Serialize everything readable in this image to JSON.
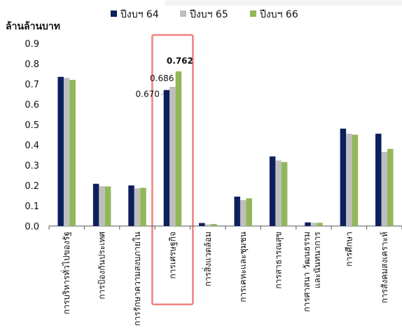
{
  "chart_data": {
    "type": "bar",
    "unit_label": "ล้านล้านบาท",
    "yticks": [
      "0.0",
      "0.1",
      "0.2",
      "0.3",
      "0.4",
      "0.5",
      "0.6",
      "0.7",
      "0.8",
      "0.9"
    ],
    "ylim": [
      0,
      0.9
    ],
    "grid": false,
    "legend_position": "top",
    "categories": [
      [
        "การบริหารทั่วไปของรัฐ"
      ],
      [
        "การป้องกันประเทศ"
      ],
      [
        "การรักษาความสงบภายใน"
      ],
      [
        "การเศรษฐกิจ"
      ],
      [
        "การสิ่งแวดล้อม"
      ],
      [
        "การเคหะและชุมชน"
      ],
      [
        "การสาธารณสุข"
      ],
      [
        "การศาสนา วัฒนธรรม",
        "และนันทนาการ"
      ],
      [
        "การศึกษา"
      ],
      [
        "การสังคมสงเคราะห์"
      ]
    ],
    "series": [
      {
        "name": "ปีงบฯ 64",
        "color": "#0d1f5c",
        "values": [
          0.735,
          0.208,
          0.2,
          0.67,
          0.015,
          0.145,
          0.343,
          0.018,
          0.48,
          0.455
        ]
      },
      {
        "name": "ปีงบฯ 65",
        "color": "#bebebe",
        "values": [
          0.73,
          0.196,
          0.186,
          0.686,
          0.008,
          0.128,
          0.323,
          0.016,
          0.455,
          0.365
        ]
      },
      {
        "name": "ปีงบฯ 66",
        "color": "#92b65a",
        "values": [
          0.72,
          0.195,
          0.188,
          0.762,
          0.01,
          0.137,
          0.315,
          0.016,
          0.45,
          0.38
        ]
      }
    ],
    "highlight_category_index": 3,
    "highlight_color": "#f08080",
    "data_labels": [
      {
        "series": 0,
        "category": 3,
        "text": "0.670"
      },
      {
        "series": 1,
        "category": 3,
        "text": "0.686"
      },
      {
        "series": 2,
        "category": 3,
        "text": "0.762",
        "bold": true
      }
    ]
  }
}
